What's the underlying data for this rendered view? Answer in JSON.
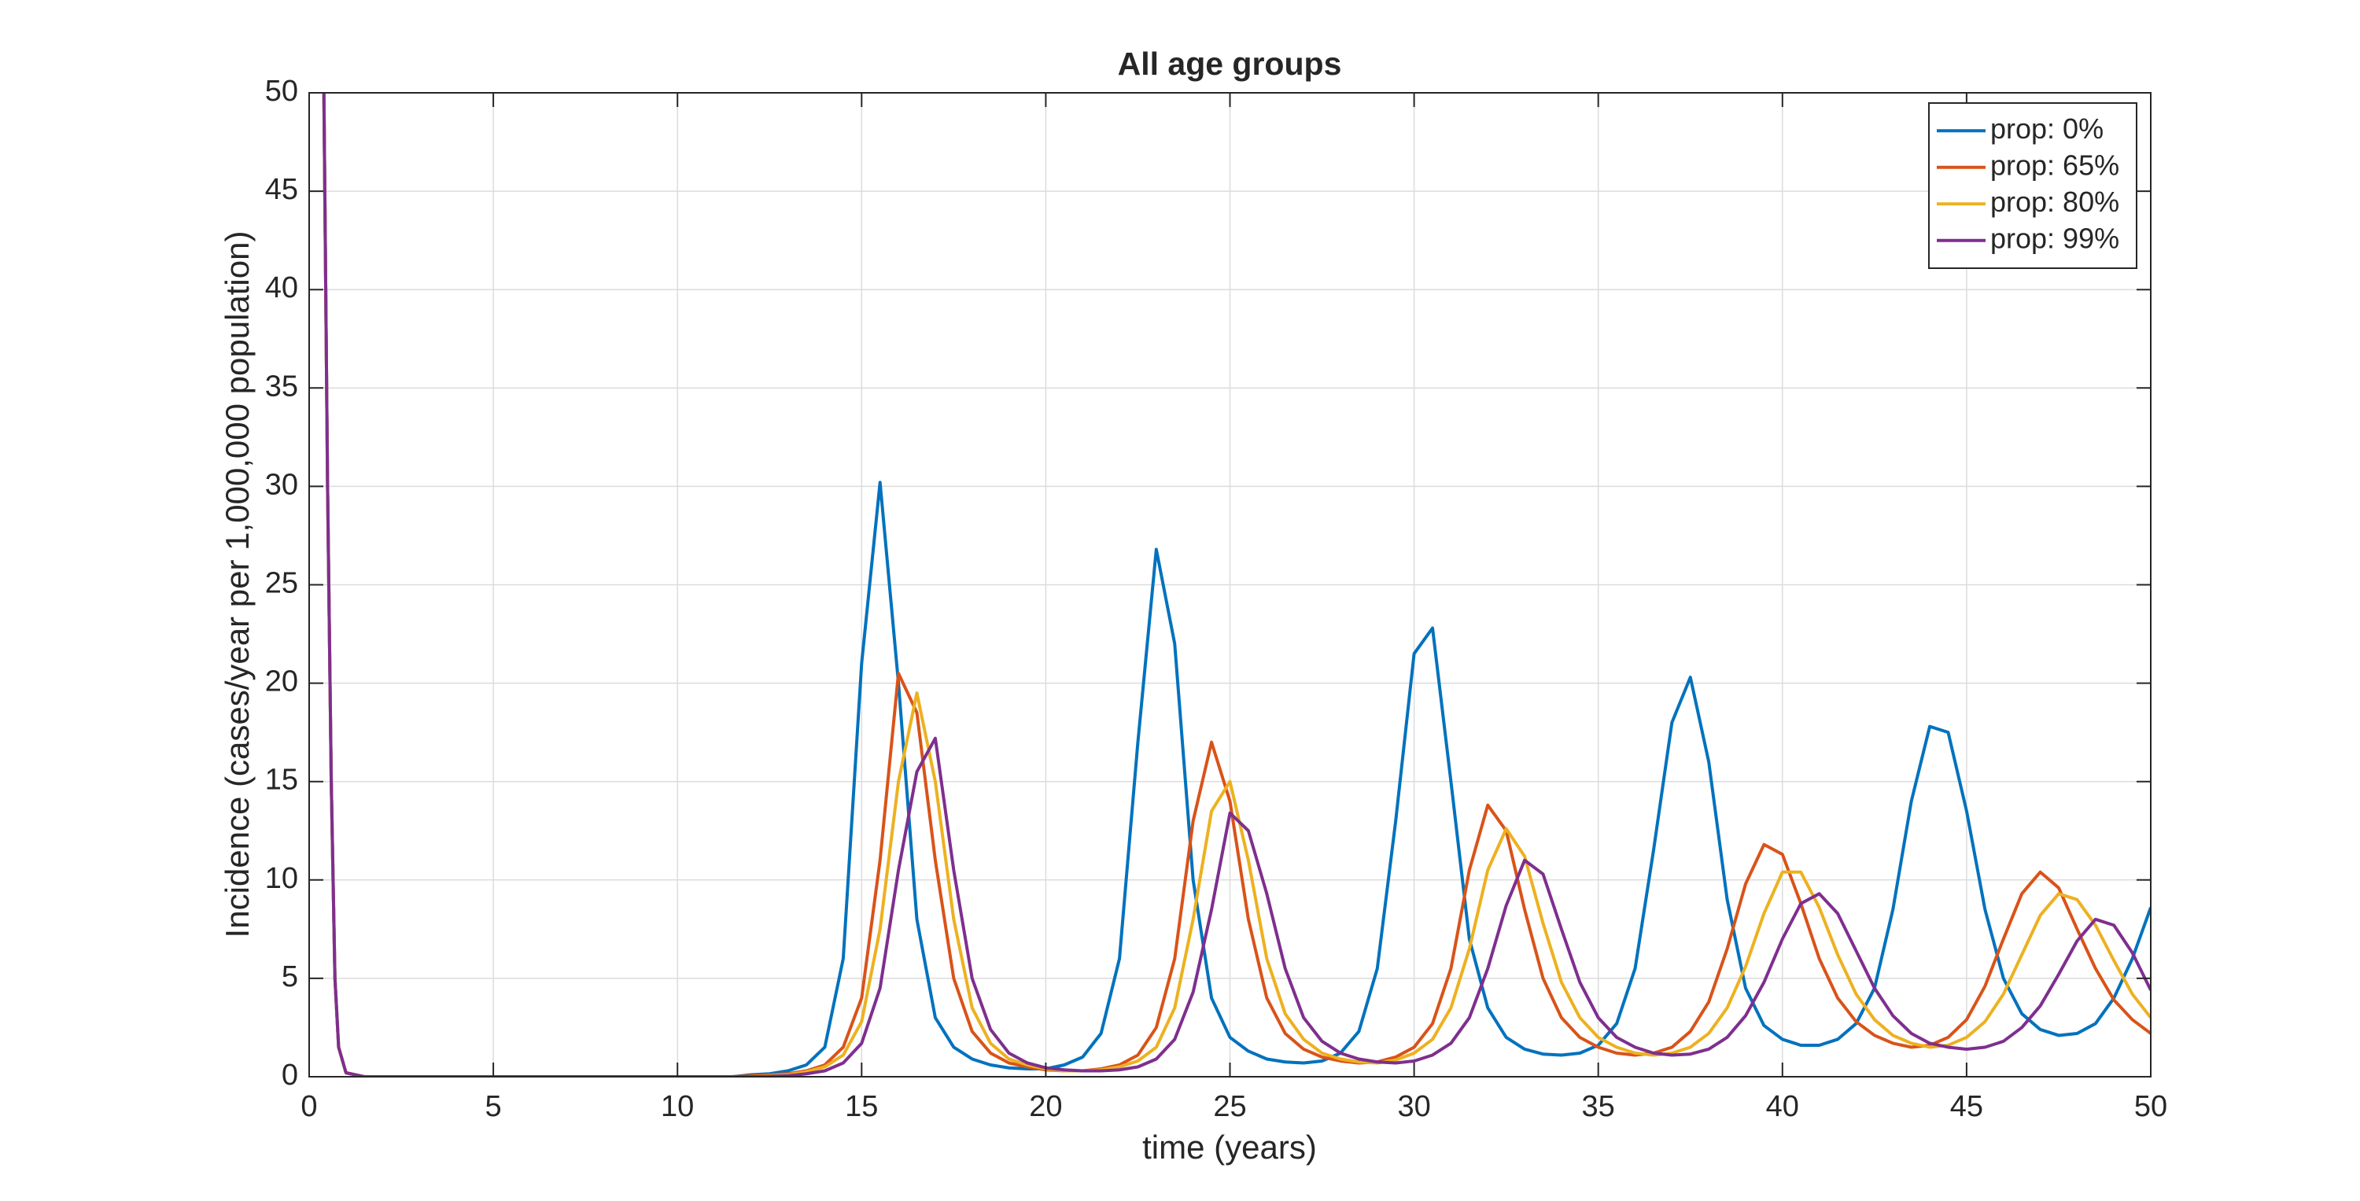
{
  "chart_data": {
    "type": "line",
    "title": "All age groups",
    "x_label": "time (years)",
    "y_label": "Incidence (cases/year per 1,000,000 population)",
    "x": [
      0.4,
      0.5,
      0.6,
      0.7,
      0.8,
      1,
      1.5,
      2,
      2.5,
      3,
      3.5,
      4,
      4.5,
      5,
      5.5,
      6,
      6.5,
      7,
      7.5,
      8,
      8.5,
      9,
      9.5,
      10,
      10.5,
      11,
      11.5,
      12,
      12.5,
      13,
      13.5,
      14,
      14.5,
      15,
      15.5,
      16,
      16.5,
      17,
      17.5,
      18,
      18.5,
      19,
      19.5,
      20,
      20.5,
      21,
      21.5,
      22,
      22.5,
      23,
      23.5,
      24,
      24.5,
      25,
      25.5,
      26,
      26.5,
      27,
      27.5,
      28,
      28.5,
      29,
      29.5,
      30,
      30.5,
      31,
      31.5,
      32,
      32.5,
      33,
      33.5,
      34,
      34.5,
      35,
      35.5,
      36,
      36.5,
      37,
      37.5,
      38,
      38.5,
      39,
      39.5,
      40,
      40.5,
      41,
      41.5,
      42,
      42.5,
      43,
      43.5,
      44,
      44.5,
      45,
      45.5,
      46,
      46.5,
      47,
      47.5,
      48,
      48.5,
      49,
      49.5,
      50
    ],
    "series": [
      {
        "name": "prop: 0%",
        "color": "#0072BD",
        "values": [
          50,
          30,
          15,
          5,
          1.5,
          0.2,
          0,
          0,
          0,
          0,
          0,
          0,
          0,
          0,
          0,
          0,
          0,
          0,
          0,
          0,
          0,
          0,
          0,
          0,
          0,
          0,
          0,
          0.1,
          0.15,
          0.3,
          0.6,
          1.5,
          6,
          21,
          30.2,
          20,
          8,
          3,
          1.5,
          0.9,
          0.6,
          0.45,
          0.4,
          0.4,
          0.6,
          1,
          2.2,
          6,
          17,
          26.8,
          22,
          10,
          4,
          2,
          1.3,
          0.9,
          0.75,
          0.7,
          0.8,
          1.2,
          2.3,
          5.5,
          13,
          21.5,
          22.8,
          15,
          7,
          3.5,
          2,
          1.4,
          1.15,
          1.1,
          1.2,
          1.6,
          2.7,
          5.5,
          11.5,
          18,
          20.3,
          16,
          9,
          4.5,
          2.6,
          1.9,
          1.6,
          1.6,
          1.9,
          2.7,
          4.5,
          8.5,
          14,
          17.8,
          17.5,
          13.5,
          8.5,
          5,
          3.2,
          2.4,
          2.1,
          2.2,
          2.7,
          4,
          6,
          8.6
        ]
      },
      {
        "name": "prop: 65%",
        "color": "#D95319",
        "values": [
          50,
          30,
          15,
          5,
          1.5,
          0.2,
          0,
          0,
          0,
          0,
          0,
          0,
          0,
          0,
          0,
          0,
          0,
          0,
          0,
          0,
          0,
          0,
          0,
          0,
          0,
          0,
          0,
          0.05,
          0.1,
          0.15,
          0.3,
          0.6,
          1.5,
          4,
          11,
          20.5,
          18.5,
          11,
          5,
          2.3,
          1.2,
          0.7,
          0.5,
          0.35,
          0.3,
          0.3,
          0.4,
          0.6,
          1.1,
          2.5,
          6,
          13,
          17,
          14,
          8,
          4,
          2.2,
          1.4,
          1,
          0.8,
          0.7,
          0.75,
          1,
          1.5,
          2.7,
          5.5,
          10.5,
          13.8,
          12.5,
          8.5,
          5,
          3,
          2,
          1.5,
          1.2,
          1.1,
          1.2,
          1.5,
          2.3,
          3.8,
          6.5,
          9.8,
          11.8,
          11.3,
          8.8,
          6,
          4,
          2.8,
          2.1,
          1.7,
          1.5,
          1.6,
          2,
          2.9,
          4.6,
          7,
          9.3,
          10.4,
          9.6,
          7.5,
          5.5,
          3.9,
          2.9,
          2.2
        ]
      },
      {
        "name": "prop: 80%",
        "color": "#EDB120",
        "values": [
          50,
          30,
          15,
          5,
          1.5,
          0.2,
          0,
          0,
          0,
          0,
          0,
          0,
          0,
          0,
          0,
          0,
          0,
          0,
          0,
          0,
          0,
          0,
          0,
          0,
          0,
          0,
          0,
          0,
          0.05,
          0.1,
          0.25,
          0.5,
          1.1,
          2.8,
          7.5,
          15,
          19.5,
          15,
          8,
          3.5,
          1.7,
          0.9,
          0.6,
          0.4,
          0.3,
          0.3,
          0.35,
          0.5,
          0.8,
          1.5,
          3.5,
          8,
          13.5,
          15,
          11,
          6,
          3.2,
          1.9,
          1.2,
          0.9,
          0.75,
          0.7,
          0.85,
          1.2,
          1.9,
          3.5,
          6.5,
          10.5,
          12.6,
          11.2,
          7.8,
          4.8,
          3,
          2,
          1.5,
          1.2,
          1.1,
          1.2,
          1.5,
          2.2,
          3.5,
          5.6,
          8.3,
          10.4,
          10.4,
          8.6,
          6.2,
          4.2,
          2.9,
          2.1,
          1.7,
          1.5,
          1.6,
          2,
          2.8,
          4.2,
          6.2,
          8.2,
          9.3,
          9,
          7.7,
          5.9,
          4.2,
          3
        ]
      },
      {
        "name": "prop: 99%",
        "color": "#7E2F8E",
        "values": [
          50,
          30,
          15,
          5,
          1.5,
          0.2,
          0,
          0,
          0,
          0,
          0,
          0,
          0,
          0,
          0,
          0,
          0,
          0,
          0,
          0,
          0,
          0,
          0,
          0,
          0,
          0,
          0,
          0,
          0.02,
          0.05,
          0.15,
          0.3,
          0.7,
          1.7,
          4.5,
          10.5,
          15.5,
          17.2,
          10.5,
          5,
          2.4,
          1.2,
          0.7,
          0.45,
          0.35,
          0.3,
          0.3,
          0.35,
          0.5,
          0.9,
          1.9,
          4.3,
          8.5,
          13.4,
          12.5,
          9.3,
          5.5,
          3,
          1.8,
          1.2,
          0.9,
          0.75,
          0.7,
          0.8,
          1.1,
          1.7,
          3,
          5.5,
          8.7,
          11,
          10.3,
          7.5,
          4.8,
          3,
          2,
          1.5,
          1.2,
          1.1,
          1.15,
          1.4,
          2,
          3.1,
          4.8,
          7,
          8.8,
          9.3,
          8.3,
          6.4,
          4.5,
          3.1,
          2.2,
          1.7,
          1.5,
          1.4,
          1.5,
          1.8,
          2.5,
          3.6,
          5.2,
          6.9,
          8,
          7.7,
          6.3,
          4.4
        ]
      }
    ],
    "xlim": [
      0,
      50
    ],
    "ylim": [
      0,
      50
    ],
    "xticks": [
      0,
      5,
      10,
      15,
      20,
      25,
      30,
      35,
      40,
      45,
      50
    ],
    "yticks": [
      0,
      5,
      10,
      15,
      20,
      25,
      30,
      35,
      40,
      45,
      50
    ],
    "grid": true,
    "legend": "upper right"
  }
}
